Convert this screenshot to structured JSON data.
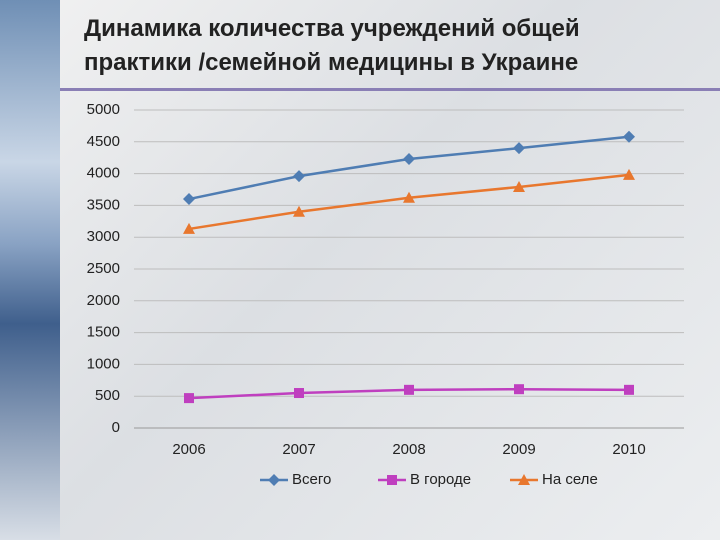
{
  "chart_data": {
    "type": "line",
    "title": "Динамика количества учреждений общей практики /семейной медицины в Украине",
    "categories": [
      "2006",
      "2007",
      "2008",
      "2009",
      "2010"
    ],
    "series": [
      {
        "name": "Всего",
        "color": "#4f7db3",
        "marker": "diamond",
        "values": [
          3600,
          3960,
          4230,
          4400,
          4580
        ]
      },
      {
        "name": "В городе",
        "color": "#bf3fbf",
        "marker": "square",
        "values": [
          470,
          550,
          600,
          610,
          600
        ]
      },
      {
        "name": "На селе",
        "color": "#e8772e",
        "marker": "triangle",
        "values": [
          3130,
          3400,
          3620,
          3790,
          3980
        ]
      }
    ],
    "ylim": [
      0,
      5000
    ],
    "yticks": [
      0,
      500,
      1000,
      1500,
      2000,
      2500,
      3000,
      3500,
      4000,
      4500,
      5000
    ],
    "grid": true,
    "legend": "bottom"
  }
}
